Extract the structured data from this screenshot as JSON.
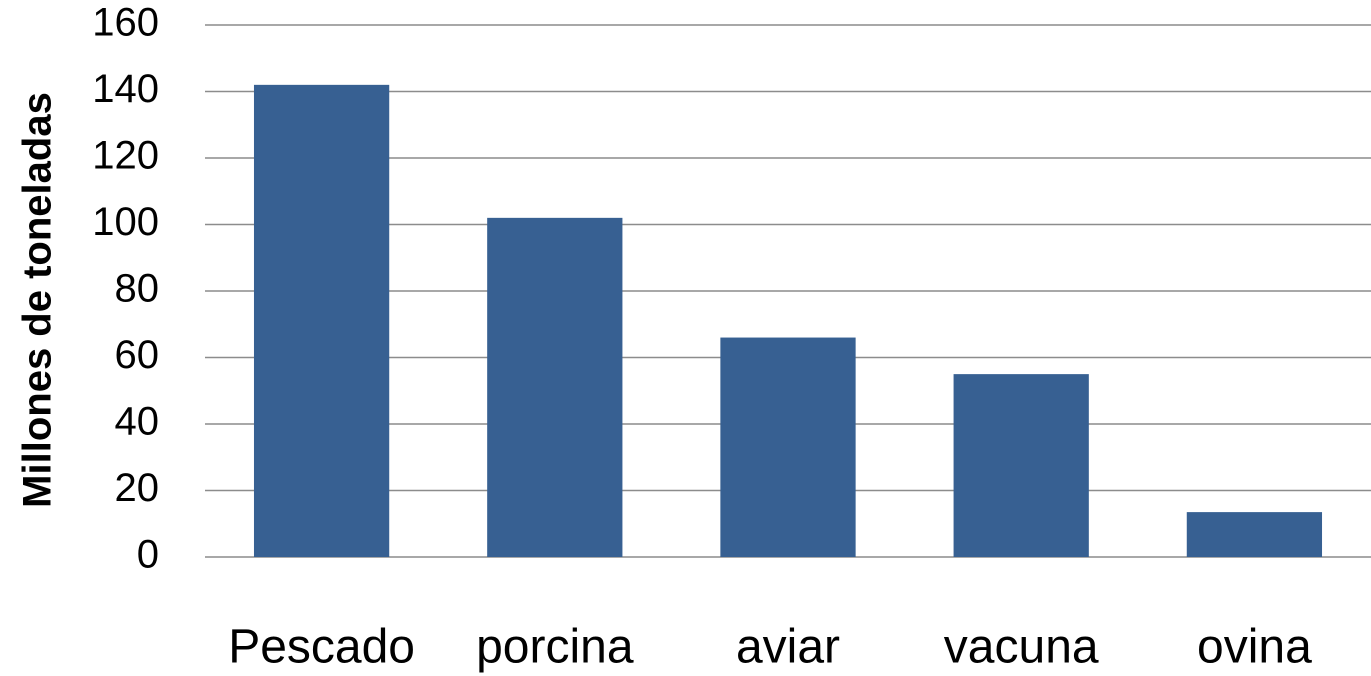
{
  "chart_data": {
    "type": "bar",
    "ylabel": "Millones de toneladas",
    "categories": [
      "Pescado",
      "porcina",
      "aviar",
      "vacuna",
      "ovina"
    ],
    "values": [
      142,
      102,
      66,
      55,
      13.5
    ],
    "color": "#376092",
    "ylim": [
      0,
      160
    ],
    "yticks": [
      0,
      20,
      40,
      60,
      80,
      100,
      120,
      140,
      160
    ],
    "grid": true
  }
}
